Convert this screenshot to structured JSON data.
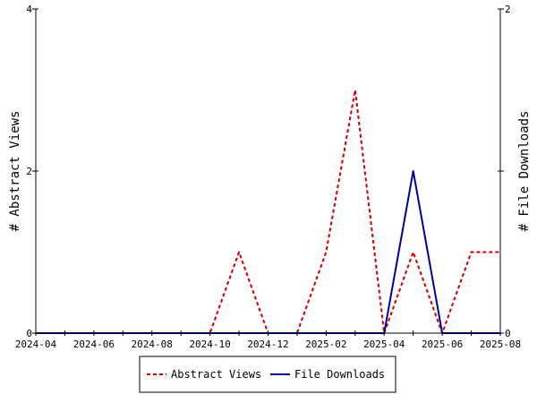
{
  "chart_data": {
    "type": "line",
    "x": [
      "2024-04",
      "2024-05",
      "2024-06",
      "2024-07",
      "2024-08",
      "2024-09",
      "2024-10",
      "2024-11",
      "2024-12",
      "2025-01",
      "2025-02",
      "2025-03",
      "2025-04",
      "2025-05",
      "2025-06",
      "2025-07",
      "2025-08"
    ],
    "x_tick_labels": [
      "2024-04",
      "2024-06",
      "2024-08",
      "2024-10",
      "2024-12",
      "2025-02",
      "2025-04",
      "2025-06",
      "2025-08"
    ],
    "series": [
      {
        "name": "Abstract Views",
        "axis": "left",
        "color": "#cc0000",
        "dash": "dashed",
        "values": [
          0,
          0,
          0,
          0,
          0,
          0,
          0,
          1,
          0,
          0,
          1,
          3,
          0,
          1,
          0,
          1,
          1
        ]
      },
      {
        "name": "File Downloads",
        "axis": "right",
        "color": "#000099",
        "dash": "solid",
        "values": [
          0,
          0,
          0,
          0,
          0,
          0,
          0,
          0,
          0,
          0,
          0,
          0,
          0,
          1,
          0,
          0,
          0
        ]
      }
    ],
    "ylabel": "# Abstract Views",
    "y2label": "# File Downloads",
    "ylim": [
      0,
      4
    ],
    "y_ticks": [
      "0",
      "2",
      "4"
    ],
    "y2lim": [
      0,
      2
    ],
    "y2_ticks": [
      "0",
      "1",
      "2"
    ],
    "legend_placement": "bottom-center",
    "grid": false
  }
}
